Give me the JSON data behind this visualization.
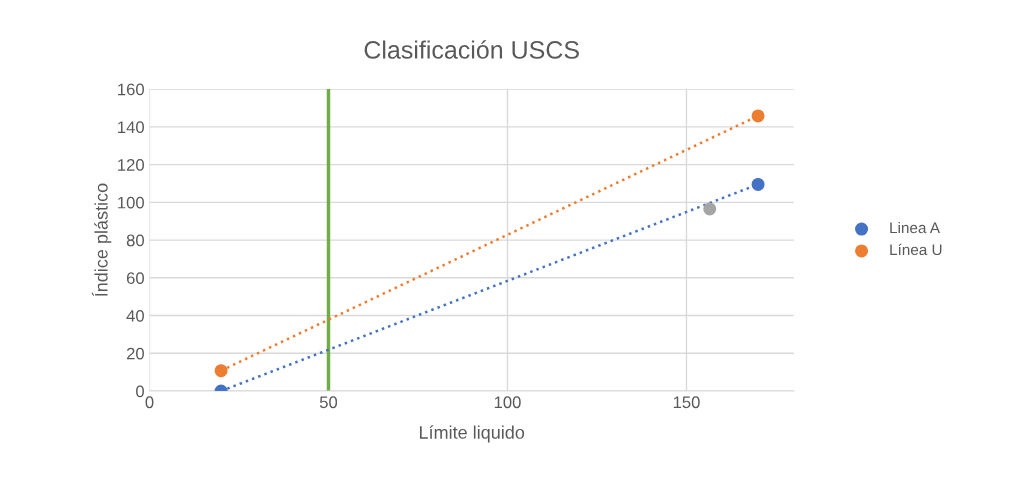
{
  "chart_data": {
    "type": "scatter",
    "title": "Clasificación USCS",
    "xlabel": "Límite liquido",
    "ylabel": "Índice plástico",
    "xlim": [
      0,
      180
    ],
    "xticks": [
      0,
      50,
      100,
      150
    ],
    "ylim": [
      0,
      160
    ],
    "yticks": [
      0,
      20,
      40,
      60,
      80,
      100,
      120,
      140,
      160
    ],
    "grid": true,
    "legend": "right",
    "series": [
      {
        "name": "Linea A",
        "color": "#4472c4",
        "marker": "circle",
        "x": [
          20,
          170
        ],
        "values": [
          0,
          109.5
        ]
      },
      {
        "name": "Línea U",
        "color": "#ed7d31",
        "marker": "circle",
        "x": [
          20,
          170
        ],
        "values": [
          10.8,
          145.8
        ]
      },
      {
        "color": "#a5a5a5",
        "marker": "circle",
        "x": [
          156.5
        ],
        "values": [
          96.5
        ]
      },
      {
        "type": "line",
        "color": "#4472c4",
        "line_style": "dotted",
        "x": [
          20,
          170
        ],
        "values": [
          0,
          109.5
        ]
      },
      {
        "type": "line",
        "color": "#ed7d31",
        "line_style": "dotted",
        "x": [
          20,
          170
        ],
        "values": [
          10.8,
          145.8
        ]
      }
    ],
    "ref_lines": [
      {
        "axis": "x",
        "value": 50,
        "color": "#70ad47",
        "line_style": "solid"
      }
    ]
  }
}
